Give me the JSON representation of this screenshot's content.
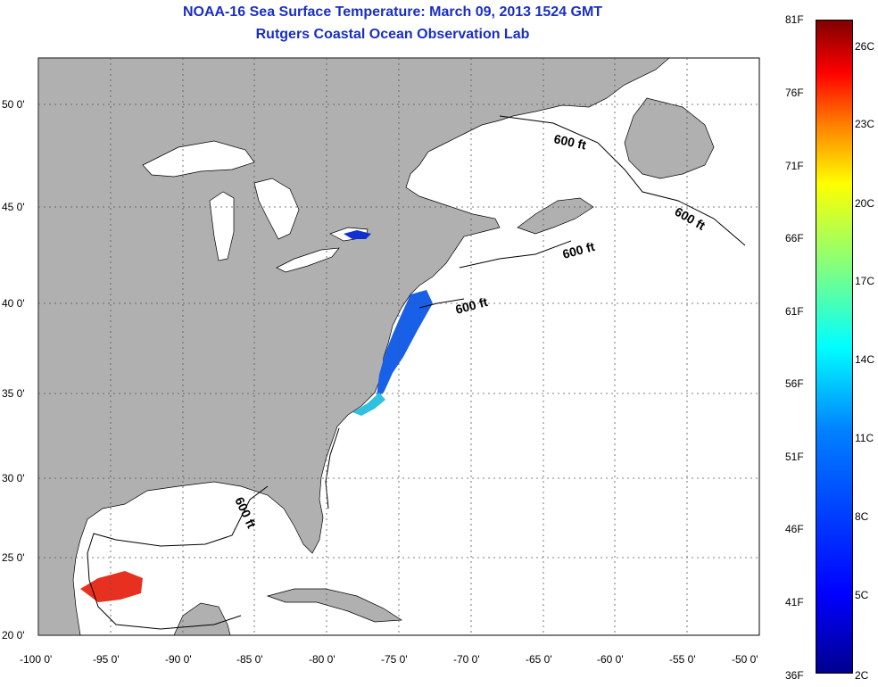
{
  "title": "NOAA-16 Sea Surface Temperature:  March 09, 2013 1524 GMT",
  "subtitle": "Rutgers Coastal Ocean Observation Lab",
  "lat_labels": [
    "50 0'",
    "45 0'",
    "40 0'",
    "35 0'",
    "30 0'",
    "25 0'",
    "20 0'"
  ],
  "lon_labels": [
    "-100 0'",
    "-95 0'",
    "-90 0'",
    "-85 0'",
    "-80 0'",
    "-75 0'",
    "-70 0'",
    "-65 0'",
    "-60 0'",
    "-55 0'",
    "-50 0'"
  ],
  "contour_label": "600 ft",
  "colorbar": {
    "fahrenheit": [
      "81F",
      "76F",
      "71F",
      "66F",
      "61F",
      "56F",
      "51F",
      "46F",
      "41F",
      "36F"
    ],
    "celsius": [
      "26C",
      "23C",
      "20C",
      "17C",
      "14C",
      "11C",
      "8C",
      "5C",
      "2C"
    ]
  },
  "colors": {
    "land": "#b0b0b0",
    "title": "#1a2fbf",
    "grid": "#000000"
  }
}
